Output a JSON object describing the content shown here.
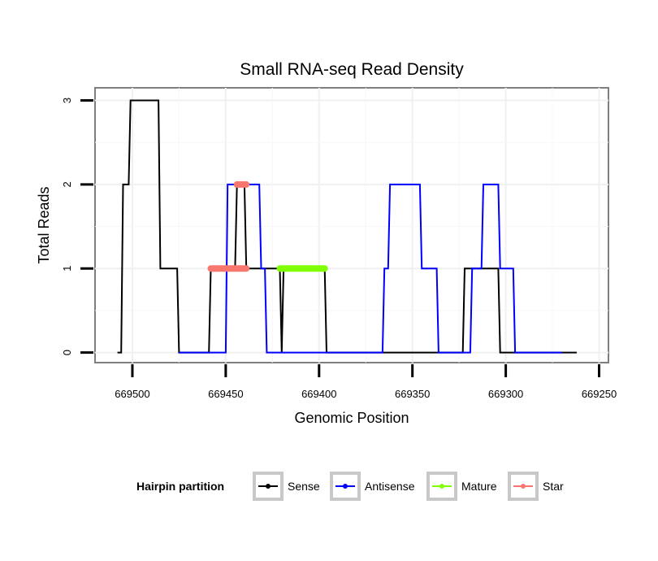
{
  "chart_data": {
    "type": "line",
    "title": "Small RNA-seq Read Density",
    "xlabel": "Genomic Position",
    "ylabel": "Total Reads",
    "xlim": [
      669520,
      669245
    ],
    "ylim": [
      -0.12,
      3.15
    ],
    "x_reversed": true,
    "x_ticks": [
      669500,
      669450,
      669400,
      669350,
      669300,
      669250
    ],
    "x_tick_labels": [
      "669500",
      "669450",
      "669400",
      "669350",
      "669300",
      "669250"
    ],
    "y_ticks": [
      0,
      1,
      2,
      3
    ],
    "y_tick_labels": [
      "0",
      "1",
      "2",
      "3"
    ],
    "grid": true,
    "legend": {
      "title": "Hairpin partition",
      "position": "bottom",
      "entries": [
        "Sense",
        "Antisense",
        "Mature",
        "Star"
      ]
    },
    "series": [
      {
        "name": "Sense",
        "color": "#000000",
        "style": "line",
        "points": [
          [
            669508,
            0
          ],
          [
            669506,
            0
          ],
          [
            669505,
            2
          ],
          [
            669502,
            2
          ],
          [
            669501,
            3
          ],
          [
            669486,
            3
          ],
          [
            669485,
            1
          ],
          [
            669476,
            1
          ],
          [
            669475,
            0
          ],
          [
            669459,
            0
          ],
          [
            669458,
            1
          ],
          [
            669445,
            1
          ],
          [
            669444,
            2
          ],
          [
            669440,
            2
          ],
          [
            669439,
            1
          ],
          [
            669421,
            1
          ],
          [
            669420,
            0
          ],
          [
            669419,
            1
          ],
          [
            669397,
            1
          ],
          [
            669396,
            0
          ],
          [
            669323,
            0
          ],
          [
            669322,
            1
          ],
          [
            669304,
            1
          ],
          [
            669303,
            0
          ],
          [
            669262,
            0
          ]
        ]
      },
      {
        "name": "Antisense",
        "color": "#0000ff",
        "style": "line",
        "points": [
          [
            669475,
            0
          ],
          [
            669450,
            0
          ],
          [
            669449,
            2
          ],
          [
            669432,
            2
          ],
          [
            669431,
            1
          ],
          [
            669429,
            1
          ],
          [
            669428,
            0
          ],
          [
            669366,
            0
          ],
          [
            669365,
            1
          ],
          [
            669363,
            1
          ],
          [
            669362,
            2
          ],
          [
            669346,
            2
          ],
          [
            669345,
            1
          ],
          [
            669337,
            1
          ],
          [
            669336,
            0
          ],
          [
            669319,
            0
          ],
          [
            669318,
            1
          ],
          [
            669313,
            1
          ],
          [
            669312,
            2
          ],
          [
            669304,
            2
          ],
          [
            669303,
            1
          ],
          [
            669296,
            1
          ],
          [
            669295,
            0
          ],
          [
            669270,
            0
          ]
        ]
      },
      {
        "name": "Mature",
        "color": "#7fff00",
        "style": "thick",
        "points": [
          [
            669421,
            1
          ],
          [
            669397,
            1
          ]
        ]
      },
      {
        "name": "Star",
        "color": "#f8766d",
        "style": "thick",
        "segments": [
          [
            [
              669458,
              1
            ],
            [
              669439,
              1
            ]
          ],
          [
            [
              669444,
              2
            ],
            [
              669439,
              2
            ]
          ]
        ]
      }
    ]
  }
}
